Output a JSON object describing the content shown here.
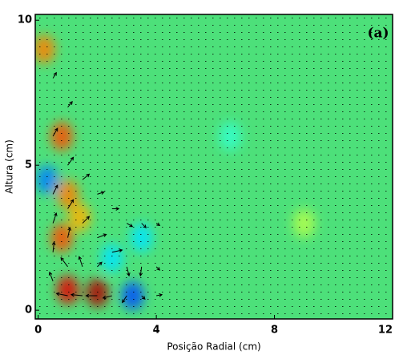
{
  "chart_data": {
    "type": "quiver",
    "annotation": "(a)",
    "xlabel": "Posição Radial (cm)",
    "ylabel": "Altura (cm)",
    "xlim": [
      -0.1,
      12
    ],
    "ylim": [
      -0.3,
      10.2
    ],
    "xticks": [
      0,
      4,
      8,
      12
    ],
    "yticks": [
      0,
      5,
      10
    ],
    "arrow_color": "#000000",
    "background_color": "#4de07a",
    "clim": [
      -1,
      1
    ],
    "field": {
      "x": [
        1,
        2,
        0.8,
        1,
        0.8,
        0.2,
        1.4,
        3.2,
        0.3,
        3.5,
        2.5,
        6.5,
        9
      ],
      "y": [
        0.7,
        0.6,
        2.5,
        4,
        6,
        9,
        3.2,
        0.5,
        4.5,
        2.5,
        1.8,
        6,
        3
      ],
      "values": [
        0.8,
        0.9,
        0.6,
        0.5,
        0.6,
        0.5,
        0.4,
        -0.6,
        -0.5,
        -0.3,
        -0.3,
        -0.15,
        0.1
      ]
    },
    "vectors": {
      "x": [
        0.5,
        0.5,
        0.5,
        0.5,
        0.5,
        0.5,
        1,
        1,
        1,
        1,
        1,
        1,
        1.5,
        1.5,
        1.5,
        1.5,
        2,
        2,
        2,
        2,
        2.5,
        2.5,
        2.5,
        3,
        3,
        3,
        3.5,
        3.5,
        3.5,
        4,
        4,
        4
      ],
      "y": [
        1,
        2,
        3,
        4,
        6,
        8,
        0.5,
        1.5,
        2.5,
        3.5,
        5,
        7,
        0.5,
        1.5,
        3,
        4.5,
        0.5,
        1.5,
        2.5,
        4,
        0.5,
        2,
        3.5,
        0.5,
        1.5,
        3,
        0.5,
        1.5,
        3,
        0.5,
        1.5,
        3
      ],
      "u": [
        -0.3,
        0.1,
        0.3,
        0.4,
        0.4,
        0.3,
        -1,
        -0.6,
        0.2,
        0.5,
        0.5,
        0.4,
        -1,
        -0.3,
        0.6,
        0.6,
        -1,
        0.4,
        0.8,
        0.6,
        -0.8,
        0.9,
        0.6,
        -0.4,
        0.2,
        0.5,
        0.3,
        -0.1,
        0.4,
        0.5,
        0.3,
        0.3
      ],
      "v": [
        0.8,
        0.9,
        0.9,
        0.8,
        0.7,
        0.5,
        0.2,
        0.8,
        0.9,
        0.8,
        0.7,
        0.5,
        0.1,
        0.9,
        0.6,
        0.5,
        0,
        0.4,
        0.3,
        0.2,
        -0.2,
        0.2,
        0,
        -0.6,
        -0.8,
        -0.3,
        -0.3,
        -0.8,
        -0.4,
        0.1,
        -0.3,
        -0.2
      ]
    }
  }
}
